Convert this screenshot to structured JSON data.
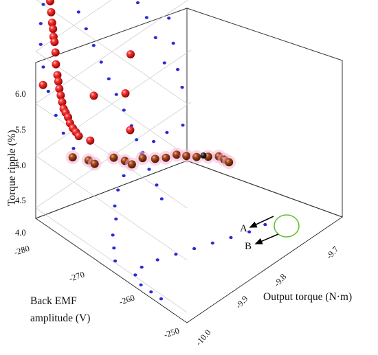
{
  "chart_data": {
    "type": "scatter",
    "title": "",
    "zlabel": "Torque ripple (%)",
    "ylabel_line1": "Back EMF",
    "ylabel_line2": "amplitude (V)",
    "xlabel": "Output torque (N·m)",
    "z_ticks": [
      "4.0",
      "4.5",
      "5.0",
      "5.5",
      "6.0"
    ],
    "y_ticks": [
      "-280",
      "-270",
      "-260",
      "-250"
    ],
    "x_ticks": [
      "-9.7",
      "-9.8",
      "-9.9",
      "-10.0"
    ],
    "zlim": [
      3.9,
      6.4
    ],
    "ylim": [
      -280,
      -250
    ],
    "xlim": [
      -10.0,
      -9.65
    ],
    "grid": true,
    "box": true,
    "annotations": [
      {
        "label": "A",
        "x": -9.72,
        "y": -272,
        "z": 4.17
      },
      {
        "label": "B",
        "x": -9.73,
        "y": -269,
        "z": 4.03
      }
    ],
    "series": [
      {
        "color": "#d01515",
        "marker": "sphere",
        "points": [
          [
            -9.987,
            -279.7,
            5.15
          ],
          [
            -9.984,
            -279.4,
            6.33
          ],
          [
            -9.982,
            -279.2,
            6.22
          ],
          [
            -9.981,
            -279.0,
            6.06
          ],
          [
            -9.98,
            -278.9,
            5.96
          ],
          [
            -9.98,
            -278.7,
            5.86
          ],
          [
            -9.979,
            -278.6,
            5.76
          ],
          [
            -9.978,
            -278.5,
            5.7
          ],
          [
            -9.978,
            -278.4,
            5.63
          ],
          [
            -9.977,
            -278.3,
            5.58
          ],
          [
            -9.976,
            -278.2,
            5.48
          ],
          [
            -9.976,
            -278.1,
            5.37
          ],
          [
            -9.975,
            -277.9,
            5.27
          ],
          [
            -9.974,
            -277.8,
            5.21
          ],
          [
            -9.973,
            -277.7,
            5.14
          ],
          [
            -9.972,
            -277.5,
            5.08
          ],
          [
            -9.971,
            -277.3,
            5.02
          ],
          [
            -9.97,
            -277.1,
            4.96
          ],
          [
            -9.969,
            -276.8,
            4.93
          ],
          [
            -9.967,
            -276.5,
            4.89
          ],
          [
            -9.966,
            -276.2,
            4.84
          ],
          [
            -9.964,
            -275.8,
            4.8
          ],
          [
            -9.962,
            -275.4,
            4.77
          ],
          [
            -9.96,
            -275.0,
            4.74
          ],
          [
            -9.975,
            -277.2,
            6.21
          ],
          [
            -9.97,
            -275.7,
            6.15
          ],
          [
            -9.96,
            -273.8,
            6.16
          ],
          [
            -9.95,
            -271.5,
            6.2
          ],
          [
            -9.935,
            -266.9,
            5.72
          ],
          [
            -9.933,
            -268.1,
            5.3
          ],
          [
            -9.935,
            -274.2,
            5.08
          ],
          [
            -9.928,
            -267.6,
            4.95
          ],
          [
            -9.951,
            -273.5,
            4.72
          ]
        ]
      },
      {
        "color": "#9c3a12",
        "marker": "sphere",
        "points": [
          [
            -9.935,
            -278.4,
            4.35
          ],
          [
            -9.915,
            -277.0,
            4.31
          ],
          [
            -9.907,
            -276.5,
            4.27
          ],
          [
            -9.889,
            -274.3,
            4.35
          ],
          [
            -9.873,
            -273.5,
            4.3
          ],
          [
            -9.864,
            -272.9,
            4.26
          ],
          [
            -9.85,
            -272.0,
            4.31
          ],
          [
            -9.832,
            -271.1,
            4.28
          ],
          [
            -9.818,
            -270.2,
            4.28
          ],
          [
            -9.804,
            -269.3,
            4.3
          ],
          [
            -9.79,
            -268.6,
            4.27
          ],
          [
            -9.775,
            -267.9,
            4.24
          ],
          [
            -9.758,
            -267.1,
            4.22
          ],
          [
            -9.742,
            -266.4,
            4.2
          ],
          [
            -9.734,
            -266.0,
            4.16
          ],
          [
            -9.728,
            -265.6,
            4.13
          ]
        ]
      },
      {
        "color": "#2b2bd6",
        "marker": "dot",
        "points": [
          [
            -10.0,
            -276.0,
            6.45
          ],
          [
            -10.0,
            -274.5,
            6.36
          ],
          [
            -10.0,
            -273.0,
            6.26
          ],
          [
            -10.0,
            -271.5,
            6.16
          ],
          [
            -10.0,
            -270.0,
            6.05
          ],
          [
            -10.0,
            -268.5,
            5.94
          ],
          [
            -10.0,
            -267.0,
            5.83
          ],
          [
            -10.0,
            -265.5,
            5.72
          ],
          [
            -10.0,
            -264.0,
            5.62
          ],
          [
            -10.0,
            -262.5,
            5.52
          ],
          [
            -10.0,
            -261.0,
            5.42
          ],
          [
            -10.0,
            -260.0,
            5.32
          ],
          [
            -10.0,
            -259.0,
            5.22
          ],
          [
            -10.0,
            -257.5,
            5.12
          ],
          [
            -10.0,
            -256.0,
            5.02
          ],
          [
            -10.0,
            -255.0,
            4.92
          ],
          [
            -10.0,
            -277.0,
            6.4
          ],
          [
            -10.0,
            -278.0,
            6.2
          ],
          [
            -10.0,
            -278.5,
            6.0
          ],
          [
            -10.0,
            -279.0,
            5.8
          ],
          [
            -10.0,
            -279.0,
            5.6
          ],
          [
            -10.0,
            -278.5,
            5.4
          ],
          [
            -10.0,
            -277.5,
            5.2
          ],
          [
            -10.0,
            -276.0,
            5.02
          ],
          [
            -10.0,
            -274.5,
            4.9
          ],
          [
            -10.0,
            -272.5,
            4.82
          ],
          [
            -9.95,
            -280.0,
            6.35
          ],
          [
            -9.91,
            -280.0,
            6.27
          ],
          [
            -9.87,
            -280.0,
            6.16
          ],
          [
            -9.83,
            -280.0,
            6.03
          ],
          [
            -9.8,
            -280.0,
            5.88
          ],
          [
            -9.77,
            -280.0,
            5.68
          ],
          [
            -9.74,
            -280.0,
            5.45
          ],
          [
            -9.72,
            -280.0,
            5.2
          ],
          [
            -9.7,
            -280.0,
            4.95
          ],
          [
            -9.69,
            -280.0,
            4.68
          ],
          [
            -9.68,
            -280.0,
            4.4
          ],
          [
            -9.67,
            -280.0,
            4.2
          ],
          [
            -9.93,
            -280.0,
            6.3
          ],
          [
            -9.89,
            -280.0,
            6.1
          ],
          [
            -9.85,
            -280.0,
            5.9
          ],
          [
            -9.82,
            -280.0,
            5.7
          ],
          [
            -9.79,
            -280.0,
            5.5
          ],
          [
            -9.77,
            -280.0,
            5.3
          ],
          [
            -9.75,
            -280.0,
            5.1
          ],
          [
            -9.73,
            -280.0,
            4.85
          ],
          [
            -9.71,
            -280.0,
            4.55
          ],
          [
            -9.98,
            -266.0,
            3.9
          ],
          [
            -9.96,
            -268.0,
            3.9
          ],
          [
            -9.94,
            -270.0,
            3.9
          ],
          [
            -9.91,
            -272.0,
            3.9
          ],
          [
            -9.89,
            -274.0,
            3.9
          ],
          [
            -9.86,
            -276.0,
            3.9
          ],
          [
            -9.83,
            -277.5,
            3.9
          ],
          [
            -9.8,
            -278.5,
            3.9
          ],
          [
            -9.77,
            -279.0,
            3.9
          ],
          [
            -9.74,
            -279.5,
            3.9
          ],
          [
            -9.71,
            -279.5,
            3.9
          ],
          [
            -9.68,
            -279.0,
            3.9
          ],
          [
            -9.98,
            -262.0,
            3.9
          ],
          [
            -9.96,
            -262.5,
            3.9
          ],
          [
            -9.93,
            -262.0,
            3.9
          ],
          [
            -9.9,
            -261.0,
            3.9
          ],
          [
            -9.87,
            -260.0,
            3.9
          ],
          [
            -9.84,
            -259.0,
            3.9
          ],
          [
            -9.81,
            -258.0,
            3.9
          ],
          [
            -9.78,
            -257.0,
            3.9
          ],
          [
            -9.75,
            -256.5,
            3.9
          ],
          [
            -9.99,
            -256.0,
            3.9
          ],
          [
            -9.99,
            -258.0,
            3.9
          ],
          [
            -9.99,
            -260.0,
            3.9
          ]
        ]
      }
    ]
  }
}
